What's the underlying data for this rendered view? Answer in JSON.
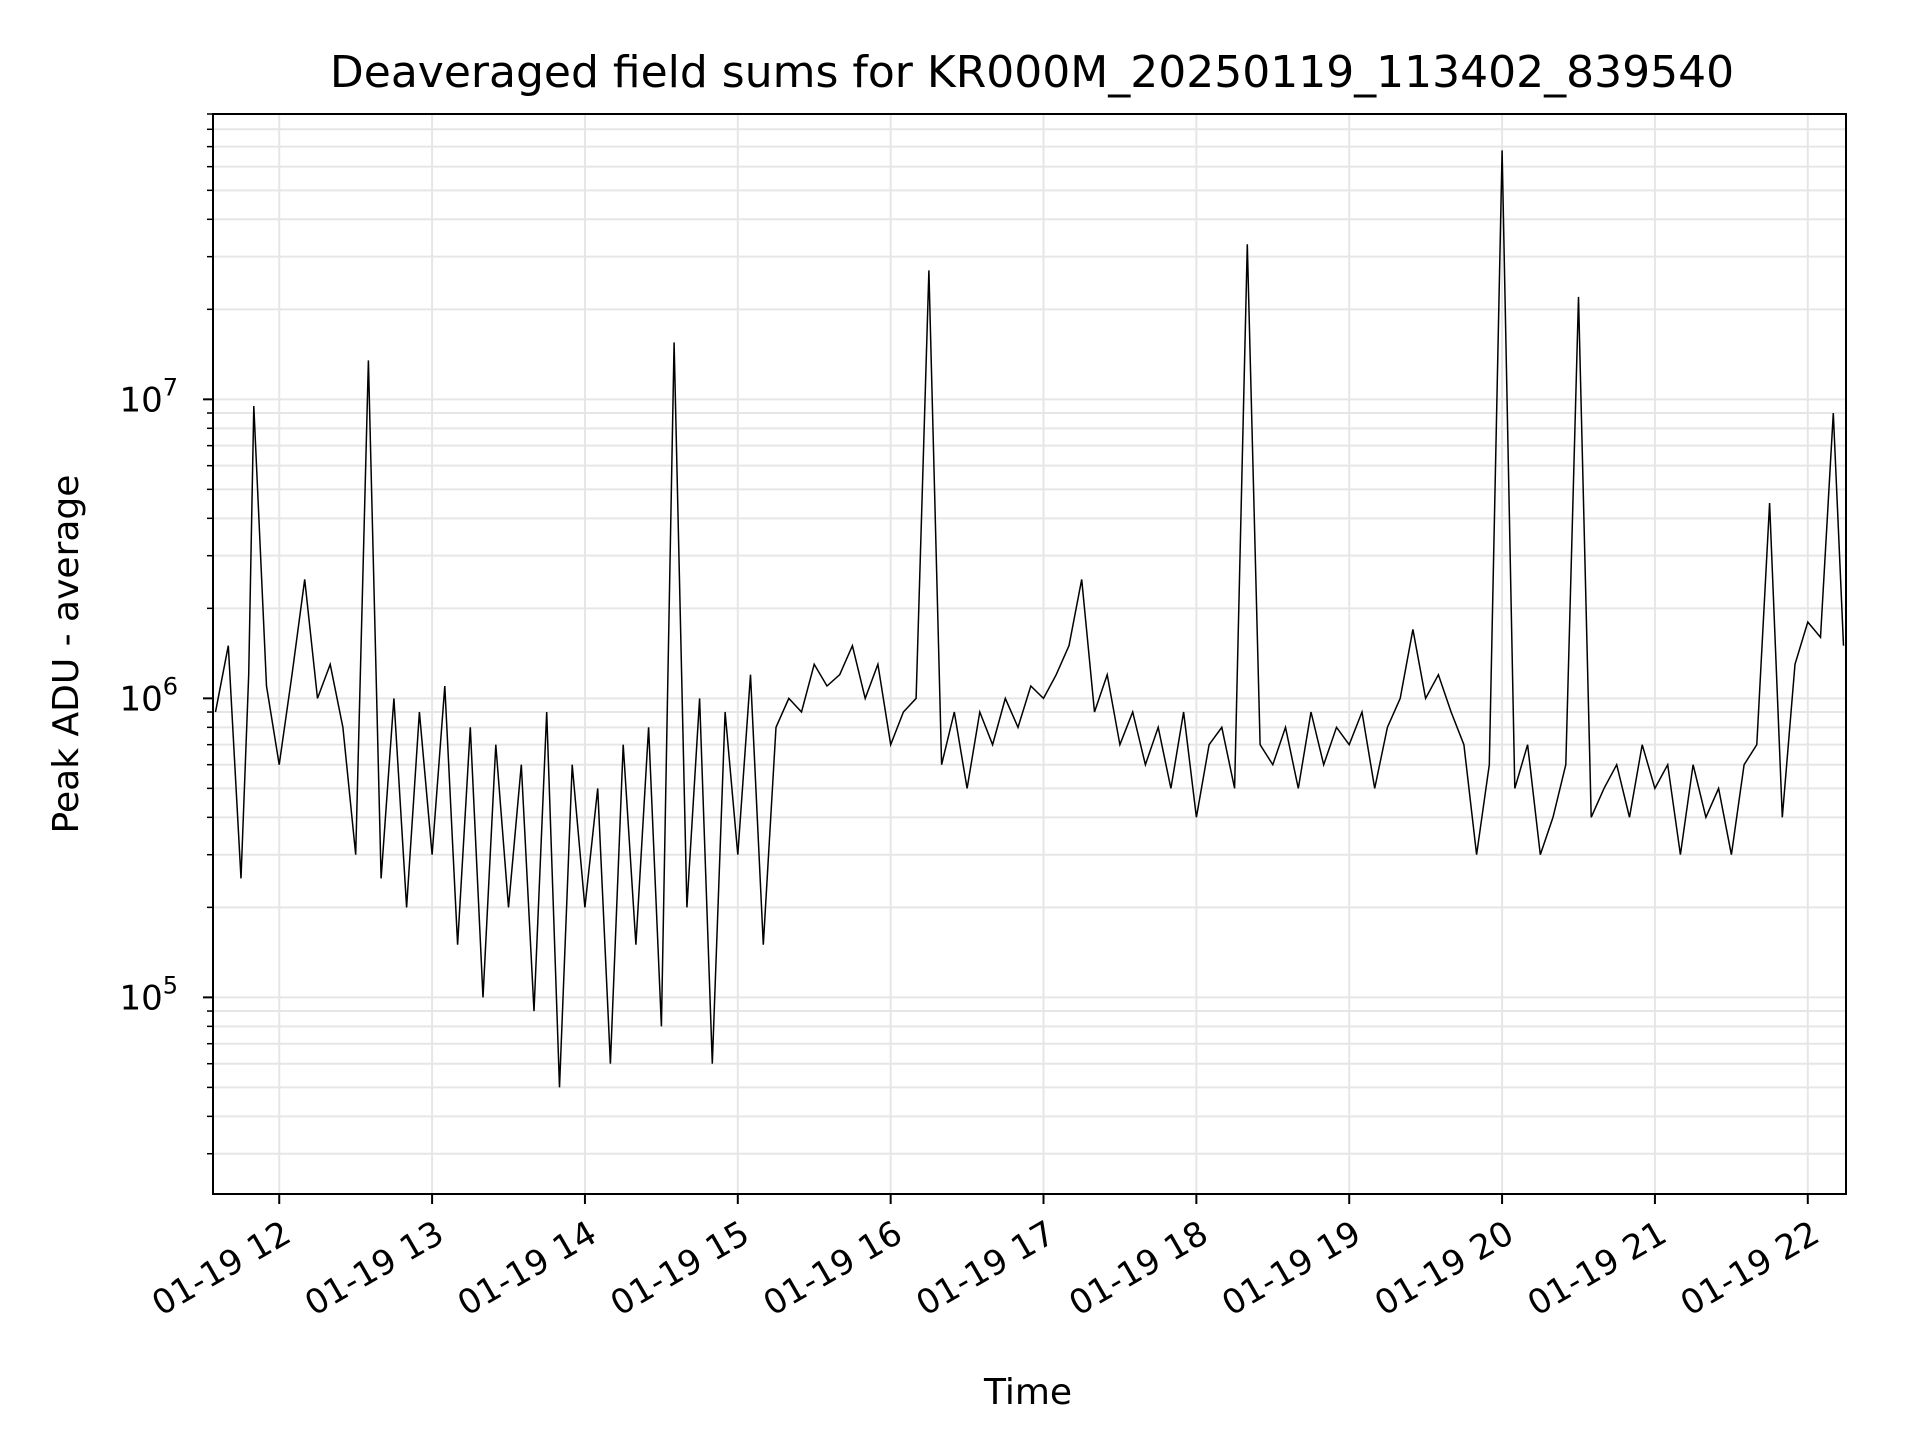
{
  "chart_data": {
    "type": "line",
    "title": "Deaveraged field sums for KR000M_20250119_113402_839540",
    "xlabel": "Time",
    "ylabel": "Peak ADU - average",
    "yscale": "log",
    "ylim": [
      22000,
      90000000
    ],
    "xlim": [
      "01-19 11:34",
      "01-19 22:15"
    ],
    "grid": true,
    "x_ticks": [
      "01-19 12",
      "01-19 13",
      "01-19 14",
      "01-19 15",
      "01-19 16",
      "01-19 17",
      "01-19 18",
      "01-19 19",
      "01-19 20",
      "01-19 21",
      "01-19 22"
    ],
    "y_ticks": [
      {
        "base": "10",
        "exp": "5",
        "value": 100000
      },
      {
        "base": "10",
        "exp": "6",
        "value": 1000000
      },
      {
        "base": "10",
        "exp": "7",
        "value": 10000000
      }
    ],
    "line_color": "#000000",
    "series": [
      {
        "x": [
          "01-19 11:35",
          "01-19 11:40",
          "01-19 11:45",
          "01-19 11:48",
          "01-19 11:50",
          "01-19 11:55",
          "01-19 12:00",
          "01-19 12:05",
          "01-19 12:10",
          "01-19 12:15",
          "01-19 12:20",
          "01-19 12:25",
          "01-19 12:30",
          "01-19 12:35",
          "01-19 12:40",
          "01-19 12:45",
          "01-19 12:50",
          "01-19 12:55",
          "01-19 13:00",
          "01-19 13:05",
          "01-19 13:10",
          "01-19 13:15",
          "01-19 13:20",
          "01-19 13:25",
          "01-19 13:30",
          "01-19 13:35",
          "01-19 13:40",
          "01-19 13:45",
          "01-19 13:50",
          "01-19 13:55",
          "01-19 14:00",
          "01-19 14:05",
          "01-19 14:10",
          "01-19 14:15",
          "01-19 14:20",
          "01-19 14:25",
          "01-19 14:30",
          "01-19 14:35",
          "01-19 14:40",
          "01-19 14:45",
          "01-19 14:50",
          "01-19 14:55",
          "01-19 15:00",
          "01-19 15:05",
          "01-19 15:10",
          "01-19 15:15",
          "01-19 15:20",
          "01-19 15:25",
          "01-19 15:30",
          "01-19 15:35",
          "01-19 15:40",
          "01-19 15:45",
          "01-19 15:50",
          "01-19 15:55",
          "01-19 16:00",
          "01-19 16:05",
          "01-19 16:10",
          "01-19 16:15",
          "01-19 16:20",
          "01-19 16:25",
          "01-19 16:30",
          "01-19 16:35",
          "01-19 16:40",
          "01-19 16:45",
          "01-19 16:50",
          "01-19 16:55",
          "01-19 17:00",
          "01-19 17:05",
          "01-19 17:10",
          "01-19 17:15",
          "01-19 17:20",
          "01-19 17:25",
          "01-19 17:30",
          "01-19 17:35",
          "01-19 17:40",
          "01-19 17:45",
          "01-19 17:50",
          "01-19 17:55",
          "01-19 18:00",
          "01-19 18:05",
          "01-19 18:10",
          "01-19 18:15",
          "01-19 18:20",
          "01-19 18:25",
          "01-19 18:30",
          "01-19 18:35",
          "01-19 18:40",
          "01-19 18:45",
          "01-19 18:50",
          "01-19 18:55",
          "01-19 19:00",
          "01-19 19:05",
          "01-19 19:10",
          "01-19 19:15",
          "01-19 19:20",
          "01-19 19:25",
          "01-19 19:30",
          "01-19 19:35",
          "01-19 19:40",
          "01-19 19:45",
          "01-19 19:50",
          "01-19 19:55",
          "01-19 20:00",
          "01-19 20:05",
          "01-19 20:10",
          "01-19 20:15",
          "01-19 20:20",
          "01-19 20:25",
          "01-19 20:30",
          "01-19 20:35",
          "01-19 20:40",
          "01-19 20:45",
          "01-19 20:50",
          "01-19 20:55",
          "01-19 21:00",
          "01-19 21:05",
          "01-19 21:10",
          "01-19 21:15",
          "01-19 21:20",
          "01-19 21:25",
          "01-19 21:30",
          "01-19 21:35",
          "01-19 21:40",
          "01-19 21:45",
          "01-19 21:50",
          "01-19 21:55",
          "01-19 22:00",
          "01-19 22:05",
          "01-19 22:10",
          "01-19 22:14"
        ],
        "y": [
          900000,
          1500000,
          250000,
          1200000,
          9500000,
          1100000,
          600000,
          1200000,
          2500000,
          1000000,
          1300000,
          800000,
          300000,
          13500000,
          250000,
          1000000,
          200000,
          900000,
          300000,
          1100000,
          150000,
          800000,
          100000,
          700000,
          200000,
          600000,
          90000,
          900000,
          50000,
          600000,
          200000,
          500000,
          60000,
          700000,
          150000,
          800000,
          80000,
          15500000,
          200000,
          1000000,
          60000,
          900000,
          300000,
          1200000,
          150000,
          800000,
          1000000,
          900000,
          1300000,
          1100000,
          1200000,
          1500000,
          1000000,
          1300000,
          700000,
          900000,
          1000000,
          27000000,
          600000,
          900000,
          500000,
          900000,
          700000,
          1000000,
          800000,
          1100000,
          1000000,
          1200000,
          1500000,
          2500000,
          900000,
          1200000,
          700000,
          900000,
          600000,
          800000,
          500000,
          900000,
          400000,
          700000,
          800000,
          500000,
          33000000,
          700000,
          600000,
          800000,
          500000,
          900000,
          600000,
          800000,
          700000,
          900000,
          500000,
          800000,
          1000000,
          1700000,
          1000000,
          1200000,
          900000,
          700000,
          300000,
          600000,
          68000000,
          500000,
          700000,
          300000,
          400000,
          600000,
          22000000,
          400000,
          500000,
          600000,
          400000,
          700000,
          500000,
          600000,
          300000,
          600000,
          400000,
          500000,
          300000,
          600000,
          700000,
          4500000,
          400000,
          1300000,
          1800000,
          1600000,
          9000000,
          1500000
        ]
      }
    ]
  }
}
